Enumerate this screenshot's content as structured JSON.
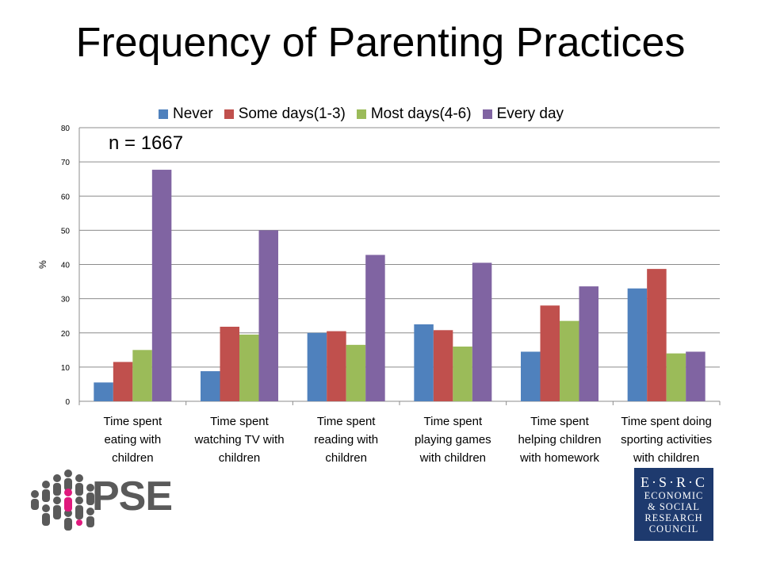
{
  "title": "Frequency of Parenting Practices",
  "annotation": "n = 1667",
  "chart_data": {
    "type": "bar",
    "title": "Frequency of Parenting Practices",
    "ylabel": "%",
    "ylim": [
      0,
      80
    ],
    "yticks": [
      "0",
      "10",
      "20",
      "30",
      "40",
      "50",
      "60",
      "70",
      "80"
    ],
    "grid": true,
    "legend_position": "top",
    "categories": [
      [
        "Time spent",
        "eating with",
        "children"
      ],
      [
        "Time spent",
        "watching TV with",
        "children"
      ],
      [
        "Time spent",
        "reading with",
        "children"
      ],
      [
        "Time spent",
        "playing games",
        "with children"
      ],
      [
        "Time spent",
        "helping children",
        "with homework"
      ],
      [
        "Time spent doing",
        "sporting activities",
        "with children"
      ]
    ],
    "series": [
      {
        "name": "Never",
        "color": "#4f81bd",
        "values": [
          5.5,
          8.8,
          20.0,
          22.5,
          14.5,
          33.0
        ]
      },
      {
        "name": "Some days(1-3)",
        "color": "#c0504d",
        "values": [
          11.5,
          21.8,
          20.5,
          20.8,
          28.0,
          38.7
        ]
      },
      {
        "name": "Most days(4-6)",
        "color": "#9bbb59",
        "values": [
          15.0,
          19.5,
          16.5,
          16.0,
          23.5,
          14.0
        ]
      },
      {
        "name": "Every day",
        "color": "#8064a2",
        "values": [
          67.7,
          50.0,
          42.8,
          40.5,
          33.6,
          14.5
        ]
      }
    ]
  },
  "logos": {
    "pse_text": "PSE",
    "esrc_lines": [
      "E·S·R·C",
      "ECONOMIC",
      "& SOCIAL",
      "RESEARCH",
      "COUNCIL"
    ]
  }
}
